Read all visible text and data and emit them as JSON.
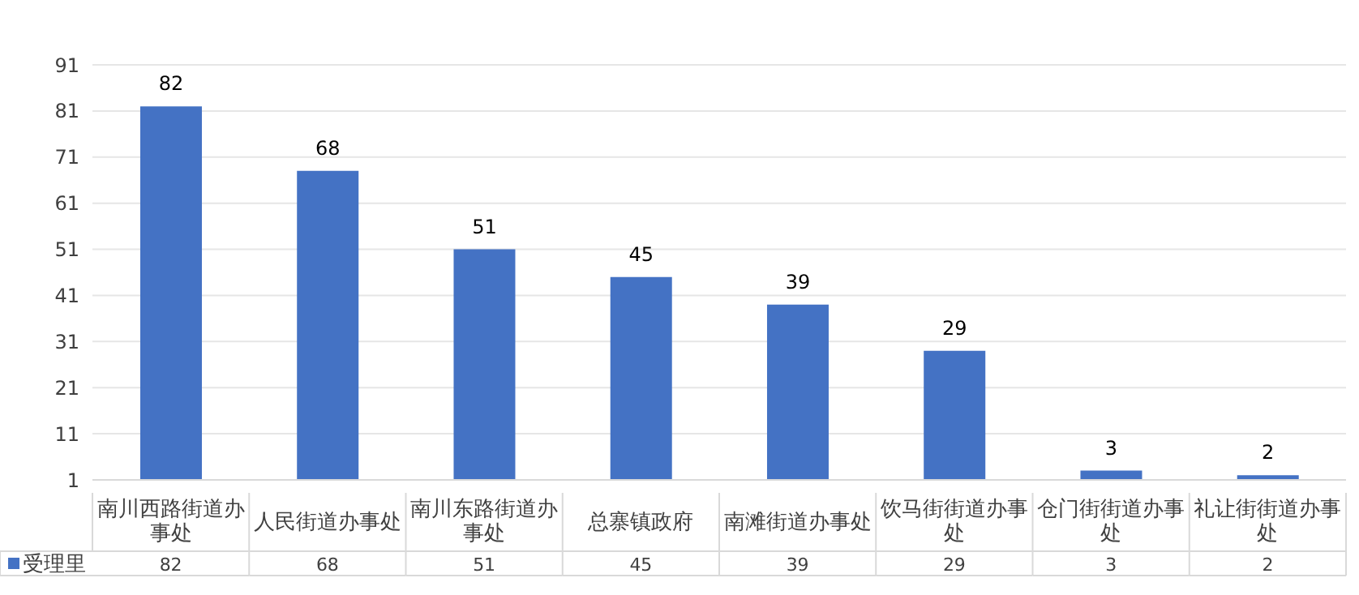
{
  "chart_data": {
    "type": "bar",
    "categories": [
      "南川西路街道办事处",
      "人民街道办事处",
      "南川东路街道办事处",
      "总寨镇政府",
      "南滩街道办事处",
      "饮马街街道办事处",
      "仓门街街道办事处",
      "礼让街街道办事处"
    ],
    "series": [
      {
        "name": "受理里",
        "color": "#4472c4",
        "values": [
          82,
          68,
          51,
          45,
          39,
          29,
          3,
          2
        ],
        "value_labels": [
          "82",
          "68",
          "51",
          "45",
          "39",
          "29",
          "3",
          "2"
        ]
      }
    ],
    "ylim": [
      1,
      91
    ],
    "yticks": [
      1,
      11,
      21,
      31,
      41,
      51,
      61,
      71,
      81,
      91
    ],
    "grid": "y",
    "legend": "bottom",
    "data_labels": true
  }
}
